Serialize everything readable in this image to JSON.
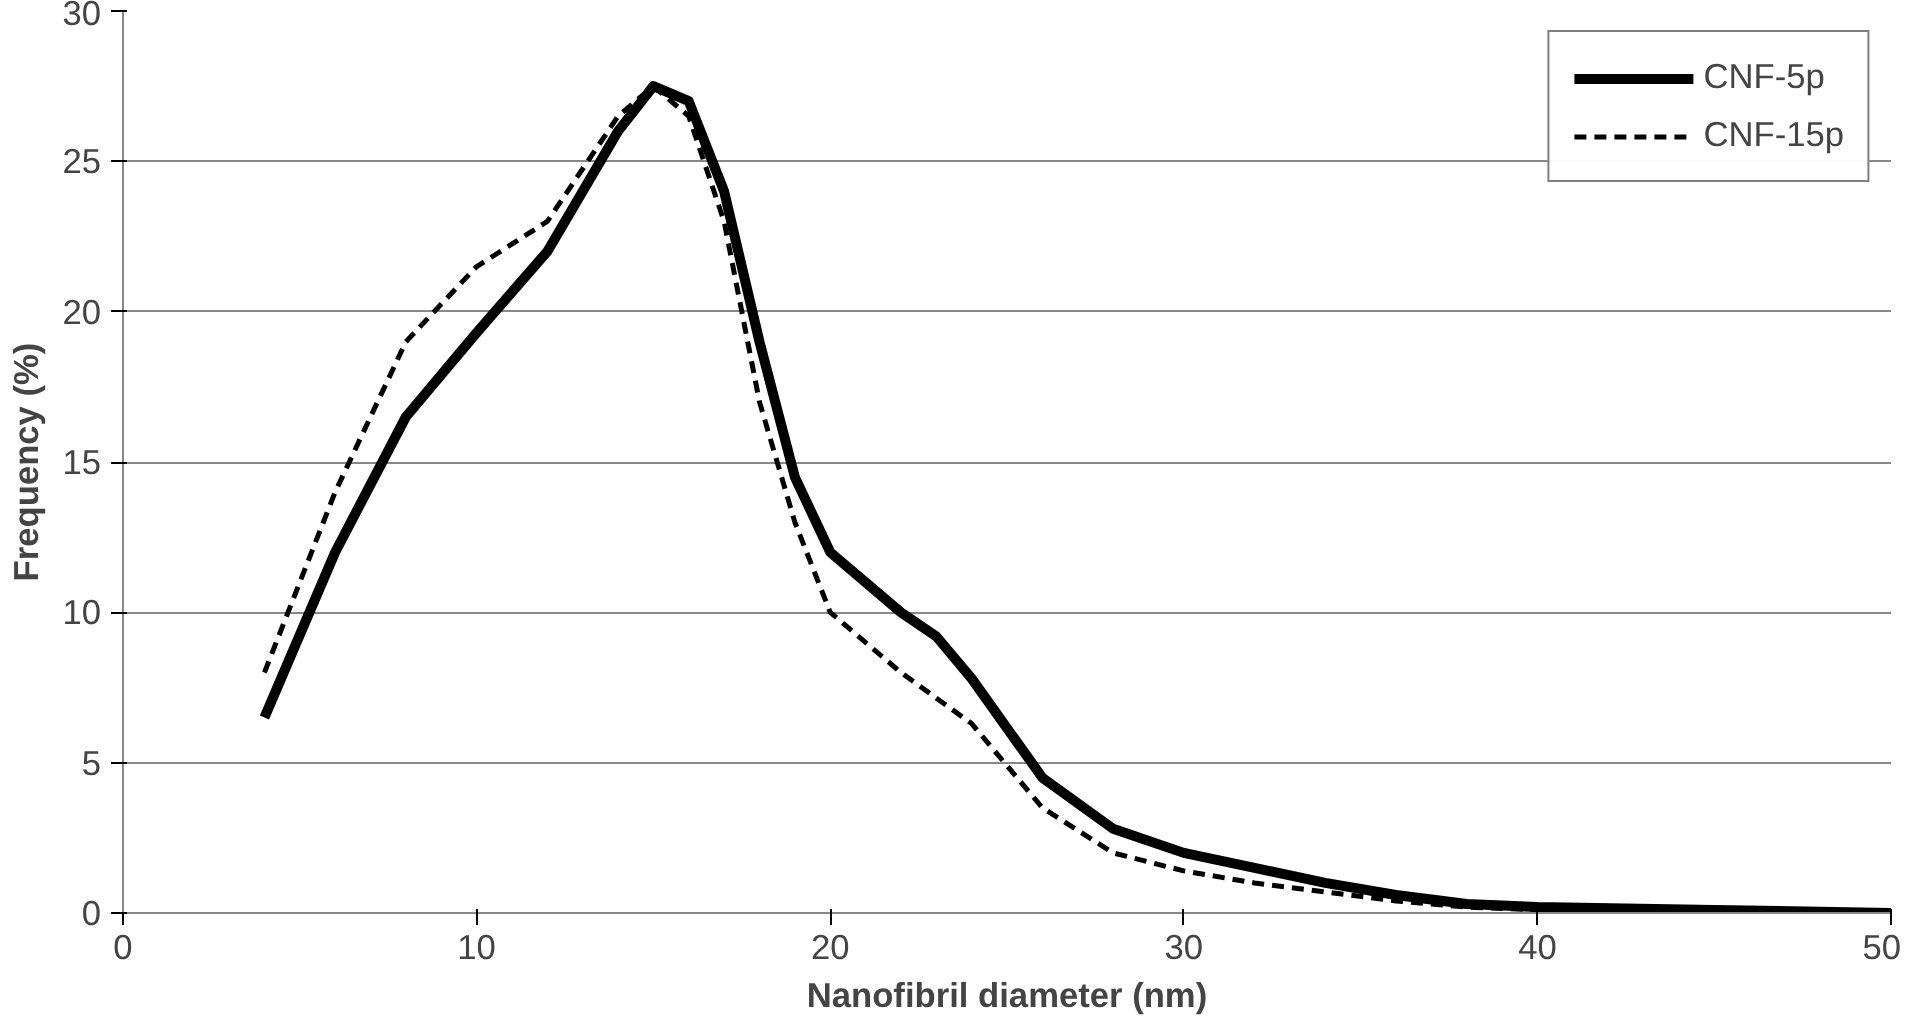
{
  "chart_data": {
    "type": "line",
    "xlabel": "Nanofibril diameter (nm)",
    "ylabel": "Frequency (%)",
    "xlim": [
      0,
      50
    ],
    "xticks": [
      0,
      10,
      20,
      30,
      40,
      50
    ],
    "ylim": [
      0,
      30
    ],
    "yticks": [
      0,
      5,
      10,
      15,
      20,
      25,
      30
    ],
    "grid": "y",
    "legend": "top right",
    "marker": "none",
    "series": [
      {
        "name": "CNF-5p",
        "color": "#000000",
        "line_style": "solid",
        "x": [
          4,
          6,
          8,
          10,
          12,
          14,
          15,
          16,
          17,
          18,
          19,
          20,
          22,
          23,
          24,
          26,
          28,
          30,
          32,
          34,
          36,
          38,
          40,
          45,
          50
        ],
        "values": [
          6.5,
          12,
          16.5,
          19.3,
          22,
          26,
          27.5,
          27,
          24,
          19,
          14.5,
          12,
          10,
          9.2,
          7.8,
          4.5,
          2.8,
          2,
          1.5,
          1,
          0.6,
          0.3,
          0.2,
          0.1,
          0
        ]
      },
      {
        "name": "CNF-15p",
        "color": "#000000",
        "line_style": "dashed",
        "x": [
          4,
          6,
          8,
          10,
          12,
          14,
          15,
          16,
          17,
          18,
          19,
          20,
          22,
          24,
          26,
          28,
          30,
          32,
          34,
          36,
          38,
          40,
          45,
          50
        ],
        "values": [
          8,
          14,
          19,
          21.5,
          23,
          26.5,
          27.5,
          26.5,
          23,
          17,
          13,
          10,
          8,
          6.3,
          3.5,
          2,
          1.4,
          1,
          0.7,
          0.4,
          0.2,
          0.1,
          0.05,
          0
        ]
      }
    ]
  }
}
